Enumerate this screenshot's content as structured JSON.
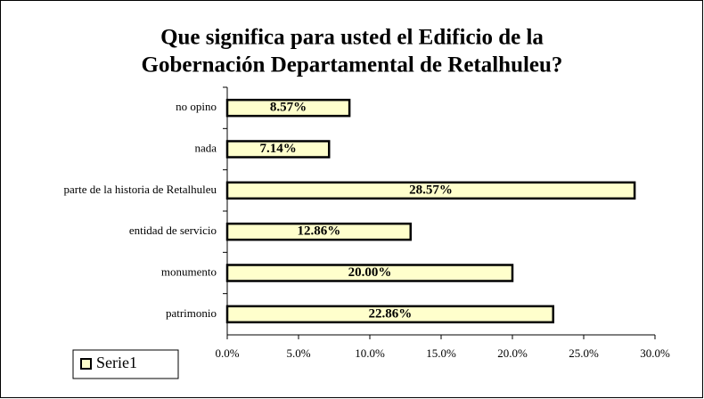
{
  "chart_data": {
    "type": "barh",
    "title": [
      "Que significa para usted el Edificio de la",
      "Gobernación Departamental de Retalhuleu?"
    ],
    "categories": [
      "no opino",
      "nada",
      "parte de la historia de Retalhuleu",
      "entidad de servicio",
      "monumento",
      "patrimonio"
    ],
    "series": [
      {
        "name": "Serie1",
        "color": "#ffffcc",
        "values": [
          8.57,
          7.14,
          28.57,
          12.86,
          20.0,
          22.86
        ],
        "value_labels": [
          "8.57%",
          "7.14%",
          "28.57%",
          "12.86%",
          "20.00%",
          "22.86%"
        ]
      }
    ],
    "xlim": [
      0,
      30
    ],
    "xticks": [
      {
        "value": 0,
        "label": "0.0%"
      },
      {
        "value": 5,
        "label": "5.0%"
      },
      {
        "value": 10,
        "label": "10.0%"
      },
      {
        "value": 15,
        "label": "15.0%"
      },
      {
        "value": 20,
        "label": "20.0%"
      },
      {
        "value": 25,
        "label": "25.0%"
      },
      {
        "value": 30,
        "label": "30.0%"
      }
    ],
    "legend": "bottom-left"
  }
}
